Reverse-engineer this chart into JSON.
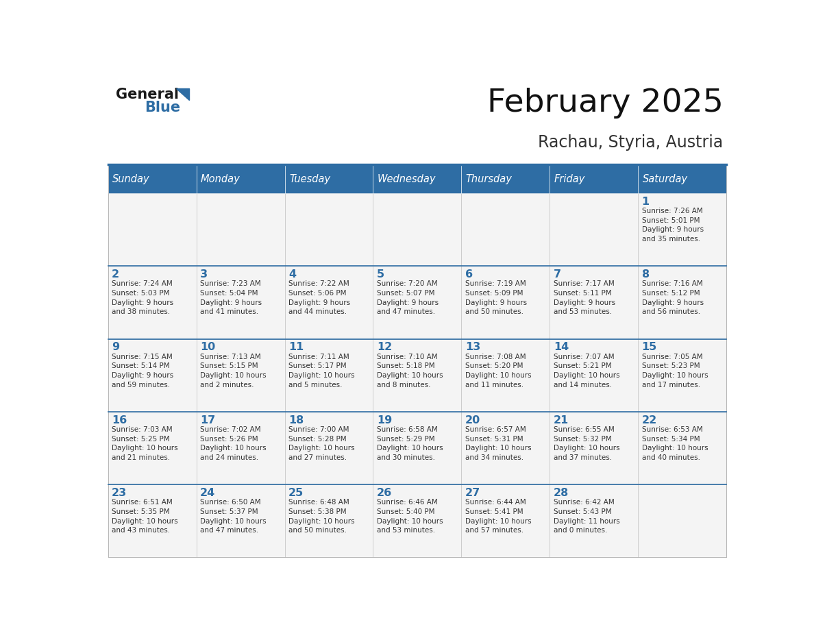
{
  "title": "February 2025",
  "subtitle": "Rachau, Styria, Austria",
  "days_of_week": [
    "Sunday",
    "Monday",
    "Tuesday",
    "Wednesday",
    "Thursday",
    "Friday",
    "Saturday"
  ],
  "header_bg": "#2E6DA4",
  "header_text": "#FFFFFF",
  "day_number_color": "#2E6DA4",
  "text_color": "#333333",
  "logo_general_color": "#1a1a1a",
  "logo_blue_color": "#2E6DA4",
  "calendar_data": [
    [
      {
        "day": null,
        "sunrise": null,
        "sunset": null,
        "daylight": null
      },
      {
        "day": null,
        "sunrise": null,
        "sunset": null,
        "daylight": null
      },
      {
        "day": null,
        "sunrise": null,
        "sunset": null,
        "daylight": null
      },
      {
        "day": null,
        "sunrise": null,
        "sunset": null,
        "daylight": null
      },
      {
        "day": null,
        "sunrise": null,
        "sunset": null,
        "daylight": null
      },
      {
        "day": null,
        "sunrise": null,
        "sunset": null,
        "daylight": null
      },
      {
        "day": 1,
        "sunrise": "7:26 AM",
        "sunset": "5:01 PM",
        "daylight": "9 hours\nand 35 minutes."
      }
    ],
    [
      {
        "day": 2,
        "sunrise": "7:24 AM",
        "sunset": "5:03 PM",
        "daylight": "9 hours\nand 38 minutes."
      },
      {
        "day": 3,
        "sunrise": "7:23 AM",
        "sunset": "5:04 PM",
        "daylight": "9 hours\nand 41 minutes."
      },
      {
        "day": 4,
        "sunrise": "7:22 AM",
        "sunset": "5:06 PM",
        "daylight": "9 hours\nand 44 minutes."
      },
      {
        "day": 5,
        "sunrise": "7:20 AM",
        "sunset": "5:07 PM",
        "daylight": "9 hours\nand 47 minutes."
      },
      {
        "day": 6,
        "sunrise": "7:19 AM",
        "sunset": "5:09 PM",
        "daylight": "9 hours\nand 50 minutes."
      },
      {
        "day": 7,
        "sunrise": "7:17 AM",
        "sunset": "5:11 PM",
        "daylight": "9 hours\nand 53 minutes."
      },
      {
        "day": 8,
        "sunrise": "7:16 AM",
        "sunset": "5:12 PM",
        "daylight": "9 hours\nand 56 minutes."
      }
    ],
    [
      {
        "day": 9,
        "sunrise": "7:15 AM",
        "sunset": "5:14 PM",
        "daylight": "9 hours\nand 59 minutes."
      },
      {
        "day": 10,
        "sunrise": "7:13 AM",
        "sunset": "5:15 PM",
        "daylight": "10 hours\nand 2 minutes."
      },
      {
        "day": 11,
        "sunrise": "7:11 AM",
        "sunset": "5:17 PM",
        "daylight": "10 hours\nand 5 minutes."
      },
      {
        "day": 12,
        "sunrise": "7:10 AM",
        "sunset": "5:18 PM",
        "daylight": "10 hours\nand 8 minutes."
      },
      {
        "day": 13,
        "sunrise": "7:08 AM",
        "sunset": "5:20 PM",
        "daylight": "10 hours\nand 11 minutes."
      },
      {
        "day": 14,
        "sunrise": "7:07 AM",
        "sunset": "5:21 PM",
        "daylight": "10 hours\nand 14 minutes."
      },
      {
        "day": 15,
        "sunrise": "7:05 AM",
        "sunset": "5:23 PM",
        "daylight": "10 hours\nand 17 minutes."
      }
    ],
    [
      {
        "day": 16,
        "sunrise": "7:03 AM",
        "sunset": "5:25 PM",
        "daylight": "10 hours\nand 21 minutes."
      },
      {
        "day": 17,
        "sunrise": "7:02 AM",
        "sunset": "5:26 PM",
        "daylight": "10 hours\nand 24 minutes."
      },
      {
        "day": 18,
        "sunrise": "7:00 AM",
        "sunset": "5:28 PM",
        "daylight": "10 hours\nand 27 minutes."
      },
      {
        "day": 19,
        "sunrise": "6:58 AM",
        "sunset": "5:29 PM",
        "daylight": "10 hours\nand 30 minutes."
      },
      {
        "day": 20,
        "sunrise": "6:57 AM",
        "sunset": "5:31 PM",
        "daylight": "10 hours\nand 34 minutes."
      },
      {
        "day": 21,
        "sunrise": "6:55 AM",
        "sunset": "5:32 PM",
        "daylight": "10 hours\nand 37 minutes."
      },
      {
        "day": 22,
        "sunrise": "6:53 AM",
        "sunset": "5:34 PM",
        "daylight": "10 hours\nand 40 minutes."
      }
    ],
    [
      {
        "day": 23,
        "sunrise": "6:51 AM",
        "sunset": "5:35 PM",
        "daylight": "10 hours\nand 43 minutes."
      },
      {
        "day": 24,
        "sunrise": "6:50 AM",
        "sunset": "5:37 PM",
        "daylight": "10 hours\nand 47 minutes."
      },
      {
        "day": 25,
        "sunrise": "6:48 AM",
        "sunset": "5:38 PM",
        "daylight": "10 hours\nand 50 minutes."
      },
      {
        "day": 26,
        "sunrise": "6:46 AM",
        "sunset": "5:40 PM",
        "daylight": "10 hours\nand 53 minutes."
      },
      {
        "day": 27,
        "sunrise": "6:44 AM",
        "sunset": "5:41 PM",
        "daylight": "10 hours\nand 57 minutes."
      },
      {
        "day": 28,
        "sunrise": "6:42 AM",
        "sunset": "5:43 PM",
        "daylight": "11 hours\nand 0 minutes."
      },
      {
        "day": null,
        "sunrise": null,
        "sunset": null,
        "daylight": null
      }
    ]
  ]
}
